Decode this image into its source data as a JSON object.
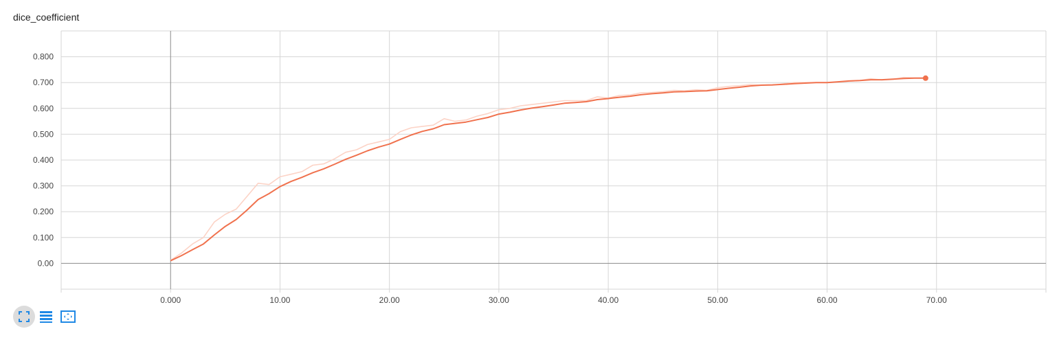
{
  "card": {
    "title": "dice_coefficient"
  },
  "toolbar": {
    "buttons": [
      {
        "name": "expand-chart-icon",
        "active": true
      },
      {
        "name": "toggle-log-scale-icon",
        "active": false
      },
      {
        "name": "fit-domain-icon",
        "active": false
      }
    ]
  },
  "colors": {
    "line": "#f0714d",
    "line_raw": "#fcd3c6",
    "grid": "#d6d6d6",
    "axis_zero": "#8a8a8a",
    "tick_text": "#444444",
    "icon_blue": "#1e88e5"
  },
  "chart_data": {
    "type": "line",
    "title": "dice_coefficient",
    "xlabel": "",
    "ylabel": "",
    "xlim": [
      -10,
      80
    ],
    "ylim": [
      -0.1,
      0.9
    ],
    "x_ticks": [
      0,
      10,
      20,
      30,
      40,
      50,
      60,
      70
    ],
    "x_tick_labels": [
      "0.000",
      "10.00",
      "20.00",
      "30.00",
      "40.00",
      "50.00",
      "60.00",
      "70.00"
    ],
    "y_ticks": [
      0,
      0.1,
      0.2,
      0.3,
      0.4,
      0.5,
      0.6,
      0.7,
      0.8
    ],
    "y_tick_labels": [
      "0.00",
      "0.100",
      "0.200",
      "0.300",
      "0.400",
      "0.500",
      "0.600",
      "0.700",
      "0.800"
    ],
    "grid": true,
    "series": [
      {
        "role": "raw",
        "x": [
          0,
          1,
          2,
          3,
          4,
          5,
          6,
          7,
          8,
          9,
          10,
          11,
          12,
          13,
          14,
          15,
          16,
          17,
          18,
          19,
          20,
          21,
          22,
          23,
          24,
          25,
          26,
          27,
          28,
          29,
          30,
          31,
          32,
          33,
          34,
          35,
          36,
          37,
          38,
          39,
          40,
          41,
          42,
          43,
          44,
          45,
          46,
          47,
          48,
          49,
          50,
          51,
          52,
          53,
          54,
          55,
          56,
          57,
          58,
          59,
          60,
          61,
          62,
          63,
          64,
          65,
          66,
          67,
          68,
          69
        ],
        "values": [
          0.012,
          0.04,
          0.075,
          0.1,
          0.16,
          0.19,
          0.21,
          0.26,
          0.31,
          0.305,
          0.335,
          0.345,
          0.355,
          0.38,
          0.385,
          0.405,
          0.43,
          0.44,
          0.46,
          0.47,
          0.48,
          0.51,
          0.525,
          0.53,
          0.535,
          0.56,
          0.55,
          0.555,
          0.57,
          0.58,
          0.595,
          0.6,
          0.61,
          0.615,
          0.62,
          0.625,
          0.63,
          0.63,
          0.63,
          0.645,
          0.64,
          0.65,
          0.652,
          0.66,
          0.662,
          0.665,
          0.67,
          0.668,
          0.672,
          0.67,
          0.68,
          0.685,
          0.688,
          0.692,
          0.69,
          0.69,
          0.695,
          0.7,
          0.7,
          0.7,
          0.7,
          0.702,
          0.705,
          0.708,
          0.715,
          0.71,
          0.712,
          0.72,
          0.718,
          0.718
        ]
      },
      {
        "role": "smoothed",
        "x": [
          0,
          1,
          2,
          3,
          4,
          5,
          6,
          7,
          8,
          9,
          10,
          11,
          12,
          13,
          14,
          15,
          16,
          17,
          18,
          19,
          20,
          21,
          22,
          23,
          24,
          25,
          26,
          27,
          28,
          29,
          30,
          31,
          32,
          33,
          34,
          35,
          36,
          37,
          38,
          39,
          40,
          41,
          42,
          43,
          44,
          45,
          46,
          47,
          48,
          49,
          50,
          51,
          52,
          53,
          54,
          55,
          56,
          57,
          58,
          59,
          60,
          61,
          62,
          63,
          64,
          65,
          66,
          67,
          68,
          69
        ],
        "values": [
          0.01,
          0.03,
          0.053,
          0.075,
          0.11,
          0.143,
          0.17,
          0.207,
          0.247,
          0.27,
          0.297,
          0.317,
          0.333,
          0.351,
          0.366,
          0.384,
          0.403,
          0.419,
          0.436,
          0.45,
          0.462,
          0.48,
          0.497,
          0.511,
          0.521,
          0.537,
          0.542,
          0.547,
          0.556,
          0.565,
          0.578,
          0.585,
          0.594,
          0.601,
          0.607,
          0.613,
          0.62,
          0.623,
          0.626,
          0.634,
          0.638,
          0.643,
          0.647,
          0.653,
          0.657,
          0.66,
          0.664,
          0.665,
          0.667,
          0.668,
          0.673,
          0.678,
          0.682,
          0.687,
          0.69,
          0.691,
          0.693,
          0.696,
          0.698,
          0.7,
          0.7,
          0.703,
          0.706,
          0.708,
          0.711,
          0.711,
          0.713,
          0.716,
          0.717,
          0.717
        ]
      }
    ]
  }
}
